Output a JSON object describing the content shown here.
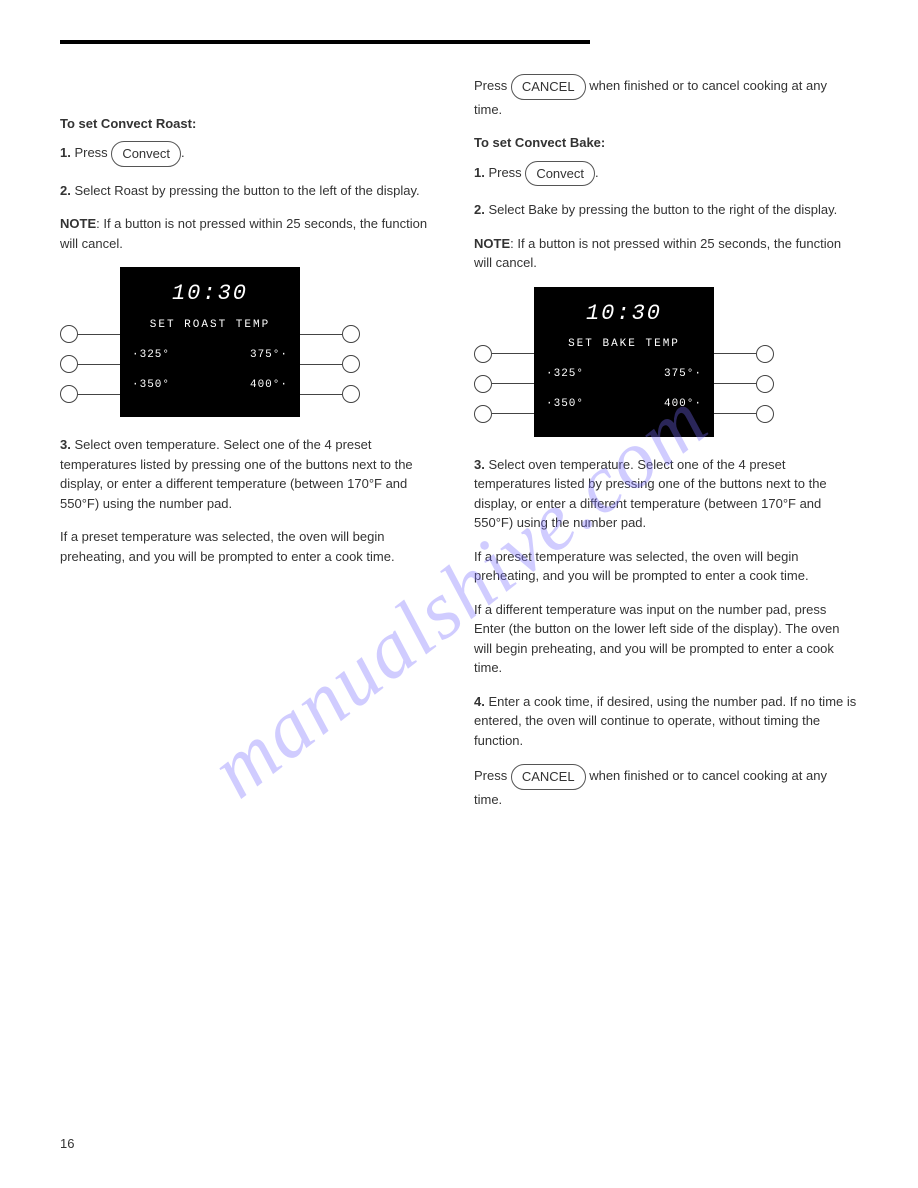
{
  "watermark": "manualshive.com",
  "page_number": "16",
  "left_col": {
    "heading": "To set Convect Roast:",
    "step1_prefix": "1.",
    "step1_text_a": " Press ",
    "step1_btn": "Convect",
    "step1_text_b": ".",
    "step2_prefix": "2.",
    "step2_text": " Select Roast by pressing the button to the left of the display.",
    "note_label": "NOTE",
    "note_text": ": If a button is not pressed within 25 seconds, the function will cancel.",
    "step3_prefix": "3.",
    "step3_text": " Select oven temperature. Select one of the 4 preset temperatures listed by pressing one of the buttons next to the display, or enter a different temperature (between 170°F and 550°F) using the number pad.",
    "bottom_para": "If a preset temperature was selected, the oven will begin preheating, and you will be prompted to enter a cook time."
  },
  "right_col": {
    "top_para_a": "Press ",
    "top_btn": "CANCEL",
    "top_para_b": " when finished or to cancel cooking at any time.",
    "heading": "To set Convect Bake:",
    "step1_prefix": "1.",
    "step1_text_a": " Press ",
    "step1_btn": "Convect",
    "step1_text_b": ".",
    "step2_prefix": "2.",
    "step2_text": " Select Bake by pressing the button to the right of the display.",
    "note_label": "NOTE",
    "note_text": ": If a button is not pressed within 25 seconds, the function will cancel.",
    "step3_prefix": "3.",
    "step3_text": " Select oven temperature. Select one of the 4 preset temperatures listed by pressing one of the buttons next to the display, or enter a different temperature (between 170°F and 550°F) using the number pad.",
    "mid_para": "If a preset temperature was selected, the oven will begin preheating, and you will be prompted to enter a cook time.",
    "mid_para2": "If a different temperature was input on the number pad, press Enter (the button on the lower left side of the display). The oven will begin preheating, and you will be prompted to enter a cook time.",
    "step4_prefix": "4.",
    "step4_text": " Enter a cook time, if desired, using the number pad. If no time is entered, the oven will continue to operate, without timing the function.",
    "bottom_para_a": "Press ",
    "bottom_btn": "CANCEL",
    "bottom_para_b": " when finished or to cancel cooking at any time."
  },
  "display_roast": {
    "time": "10:30",
    "title": "SET ROAST TEMP",
    "t1": "·325°",
    "t2": "375°·",
    "t3": "·350°",
    "t4": "400°·"
  },
  "display_bake": {
    "time": "10:30",
    "title": "SET BAKE TEMP",
    "t1": "·325°",
    "t2": "375°·",
    "t3": "·350°",
    "t4": "400°·"
  }
}
